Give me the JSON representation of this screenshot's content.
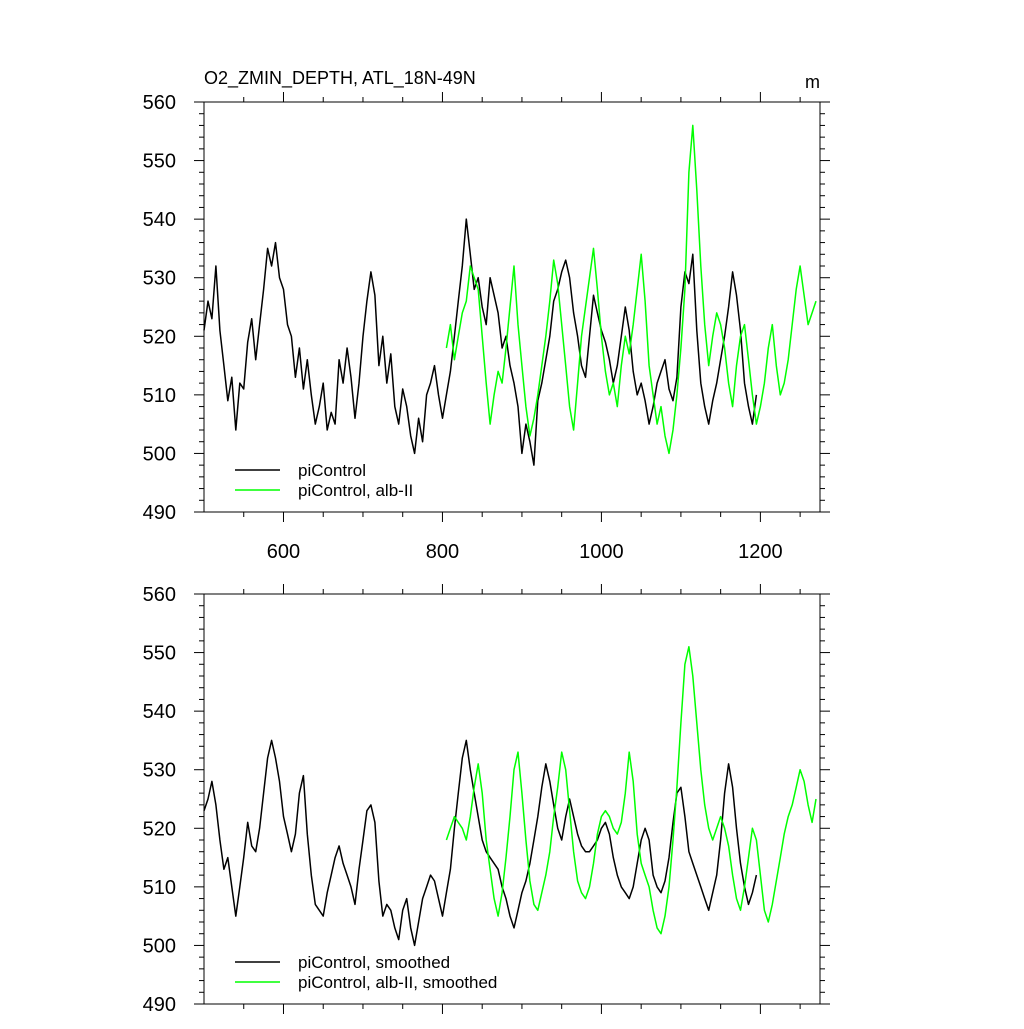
{
  "chart_data": [
    {
      "type": "line",
      "title": "O2_ZMIN_DEPTH, ATL_18N-49N",
      "units": "m",
      "xlabel": "",
      "ylabel": "",
      "xlim": [
        500,
        1275
      ],
      "ylim": [
        490,
        560
      ],
      "x_ticks": [
        600,
        800,
        1000,
        1200
      ],
      "x_tick_labels": [
        "600",
        "800",
        "1000",
        "1200"
      ],
      "y_ticks": [
        490,
        500,
        510,
        520,
        530,
        540,
        550,
        560
      ],
      "y_tick_labels": [
        "490",
        "500",
        "510",
        "520",
        "530",
        "540",
        "550",
        "560"
      ],
      "legend_position": "bottom-left",
      "series": [
        {
          "name": "piControl",
          "color": "#000000",
          "x": [
            500,
            505,
            510,
            515,
            520,
            525,
            530,
            535,
            540,
            545,
            550,
            555,
            560,
            565,
            570,
            575,
            580,
            585,
            590,
            595,
            600,
            605,
            610,
            615,
            620,
            625,
            630,
            635,
            640,
            645,
            650,
            655,
            660,
            665,
            670,
            675,
            680,
            685,
            690,
            695,
            700,
            705,
            710,
            715,
            720,
            725,
            730,
            735,
            740,
            745,
            750,
            755,
            760,
            765,
            770,
            775,
            780,
            785,
            790,
            795,
            800,
            805,
            810,
            815,
            820,
            825,
            830,
            835,
            840,
            845,
            850,
            855,
            860,
            865,
            870,
            875,
            880,
            885,
            890,
            895,
            900,
            905,
            910,
            915,
            920,
            925,
            930,
            935,
            940,
            945,
            950,
            955,
            960,
            965,
            970,
            975,
            980,
            985,
            990,
            995,
            1000,
            1005,
            1010,
            1015,
            1020,
            1025,
            1030,
            1035,
            1040,
            1045,
            1050,
            1055,
            1060,
            1065,
            1070,
            1075,
            1080,
            1085,
            1090,
            1095,
            1100,
            1105,
            1110,
            1115,
            1120,
            1125,
            1130,
            1135,
            1140,
            1145,
            1150,
            1155,
            1160,
            1165,
            1170,
            1175,
            1180,
            1185,
            1190,
            1195
          ],
          "values": [
            521,
            526,
            523,
            532,
            521,
            515,
            509,
            513,
            504,
            512,
            511,
            519,
            523,
            516,
            522,
            528,
            535,
            532,
            536,
            530,
            528,
            522,
            520,
            513,
            518,
            511,
            516,
            510,
            505,
            508,
            512,
            504,
            507,
            505,
            516,
            512,
            518,
            513,
            506,
            512,
            520,
            526,
            531,
            527,
            515,
            520,
            512,
            517,
            508,
            505,
            511,
            508,
            503,
            500,
            506,
            502,
            510,
            512,
            515,
            510,
            506,
            510,
            514,
            520,
            526,
            532,
            540,
            534,
            528,
            530,
            525,
            522,
            530,
            527,
            524,
            518,
            520,
            515,
            512,
            508,
            500,
            505,
            502,
            498,
            509,
            512,
            516,
            520,
            526,
            528,
            531,
            533,
            530,
            524,
            520,
            515,
            513,
            520,
            527,
            524,
            521,
            519,
            516,
            512,
            515,
            520,
            525,
            521,
            514,
            510,
            512,
            509,
            505,
            508,
            512,
            514,
            516,
            511,
            509,
            513,
            525,
            531,
            529,
            534,
            521,
            512,
            508,
            505,
            509,
            512,
            516,
            520,
            525,
            531,
            527,
            521,
            512,
            508,
            505,
            510
          ]
        },
        {
          "name": "piControl, alb-II",
          "color": "#00ff00",
          "x": [
            805,
            810,
            815,
            820,
            825,
            830,
            835,
            840,
            845,
            850,
            855,
            860,
            865,
            870,
            875,
            880,
            885,
            890,
            895,
            900,
            905,
            910,
            915,
            920,
            925,
            930,
            935,
            940,
            945,
            950,
            955,
            960,
            965,
            970,
            975,
            980,
            985,
            990,
            995,
            1000,
            1005,
            1010,
            1015,
            1020,
            1025,
            1030,
            1035,
            1040,
            1045,
            1050,
            1055,
            1060,
            1065,
            1070,
            1075,
            1080,
            1085,
            1090,
            1095,
            1100,
            1105,
            1110,
            1115,
            1120,
            1125,
            1130,
            1135,
            1140,
            1145,
            1150,
            1155,
            1160,
            1165,
            1170,
            1175,
            1180,
            1185,
            1190,
            1195,
            1200,
            1205,
            1210,
            1215,
            1220,
            1225,
            1230,
            1235,
            1240,
            1245,
            1250,
            1255,
            1260,
            1265,
            1270
          ],
          "values": [
            518,
            522,
            516,
            520,
            524,
            526,
            532,
            530,
            528,
            520,
            512,
            505,
            510,
            514,
            512,
            518,
            525,
            532,
            522,
            515,
            508,
            503,
            506,
            510,
            515,
            520,
            526,
            533,
            529,
            522,
            515,
            508,
            504,
            512,
            520,
            525,
            530,
            535,
            528,
            520,
            514,
            510,
            512,
            508,
            515,
            520,
            517,
            522,
            528,
            534,
            526,
            515,
            510,
            505,
            508,
            503,
            500,
            504,
            510,
            518,
            528,
            548,
            556,
            545,
            532,
            522,
            515,
            520,
            524,
            522,
            518,
            512,
            508,
            515,
            520,
            522,
            516,
            510,
            505,
            508,
            512,
            518,
            522,
            515,
            510,
            512,
            516,
            522,
            528,
            532,
            527,
            522,
            524,
            526
          ]
        }
      ]
    },
    {
      "type": "line",
      "title": "",
      "xlabel": "",
      "ylabel": "",
      "xlim": [
        500,
        1275
      ],
      "ylim": [
        490,
        560
      ],
      "x_ticks": [
        600,
        800,
        1000,
        1200
      ],
      "y_ticks": [
        490,
        500,
        510,
        520,
        530,
        540,
        550,
        560
      ],
      "y_tick_labels": [
        "490",
        "500",
        "510",
        "520",
        "530",
        "540",
        "550",
        "560"
      ],
      "legend_position": "bottom-left",
      "series": [
        {
          "name": "piControl, smoothed",
          "color": "#000000",
          "x": [
            500,
            505,
            510,
            515,
            520,
            525,
            530,
            535,
            540,
            545,
            550,
            555,
            560,
            565,
            570,
            575,
            580,
            585,
            590,
            595,
            600,
            605,
            610,
            615,
            620,
            625,
            630,
            635,
            640,
            645,
            650,
            655,
            660,
            665,
            670,
            675,
            680,
            685,
            690,
            695,
            700,
            705,
            710,
            715,
            720,
            725,
            730,
            735,
            740,
            745,
            750,
            755,
            760,
            765,
            770,
            775,
            780,
            785,
            790,
            795,
            800,
            805,
            810,
            815,
            820,
            825,
            830,
            835,
            840,
            845,
            850,
            855,
            860,
            865,
            870,
            875,
            880,
            885,
            890,
            895,
            900,
            905,
            910,
            915,
            920,
            925,
            930,
            935,
            940,
            945,
            950,
            955,
            960,
            965,
            970,
            975,
            980,
            985,
            990,
            995,
            1000,
            1005,
            1010,
            1015,
            1020,
            1025,
            1030,
            1035,
            1040,
            1045,
            1050,
            1055,
            1060,
            1065,
            1070,
            1075,
            1080,
            1085,
            1090,
            1095,
            1100,
            1105,
            1110,
            1115,
            1120,
            1125,
            1130,
            1135,
            1140,
            1145,
            1150,
            1155,
            1160,
            1165,
            1170,
            1175,
            1180,
            1185,
            1190,
            1195
          ],
          "values": [
            523,
            525,
            528,
            524,
            518,
            513,
            515,
            510,
            505,
            510,
            515,
            521,
            517,
            516,
            520,
            526,
            532,
            535,
            532,
            528,
            522,
            519,
            516,
            519,
            526,
            529,
            519,
            512,
            507,
            506,
            505,
            509,
            512,
            515,
            517,
            514,
            512,
            510,
            507,
            513,
            518,
            523,
            524,
            521,
            511,
            505,
            507,
            506,
            503,
            501,
            506,
            508,
            503,
            500,
            504,
            508,
            510,
            512,
            511,
            508,
            505,
            509,
            513,
            520,
            526,
            532,
            535,
            530,
            526,
            522,
            518,
            516,
            515,
            514,
            513,
            510,
            508,
            505,
            503,
            506,
            509,
            511,
            514,
            518,
            522,
            527,
            531,
            528,
            524,
            520,
            518,
            522,
            525,
            522,
            519,
            517,
            516,
            516,
            517,
            518,
            520,
            521,
            519,
            515,
            512,
            510,
            509,
            508,
            510,
            514,
            518,
            520,
            518,
            512,
            510,
            509,
            511,
            515,
            521,
            526,
            527,
            522,
            516,
            514,
            512,
            510,
            508,
            506,
            509,
            512,
            518,
            526,
            531,
            527,
            520,
            514,
            510,
            507,
            509,
            512
          ]
        },
        {
          "name": "piControl, alb-II, smoothed",
          "color": "#00ff00",
          "x": [
            805,
            810,
            815,
            820,
            825,
            830,
            835,
            840,
            845,
            850,
            855,
            860,
            865,
            870,
            875,
            880,
            885,
            890,
            895,
            900,
            905,
            910,
            915,
            920,
            925,
            930,
            935,
            940,
            945,
            950,
            955,
            960,
            965,
            970,
            975,
            980,
            985,
            990,
            995,
            1000,
            1005,
            1010,
            1015,
            1020,
            1025,
            1030,
            1035,
            1040,
            1045,
            1050,
            1055,
            1060,
            1065,
            1070,
            1075,
            1080,
            1085,
            1090,
            1095,
            1100,
            1105,
            1110,
            1115,
            1120,
            1125,
            1130,
            1135,
            1140,
            1145,
            1150,
            1155,
            1160,
            1165,
            1170,
            1175,
            1180,
            1185,
            1190,
            1195,
            1200,
            1205,
            1210,
            1215,
            1220,
            1225,
            1230,
            1235,
            1240,
            1245,
            1250,
            1255,
            1260,
            1265,
            1270
          ],
          "values": [
            518,
            520,
            522,
            521,
            520,
            518,
            522,
            527,
            531,
            526,
            518,
            513,
            508,
            505,
            509,
            515,
            522,
            530,
            533,
            526,
            518,
            511,
            507,
            506,
            509,
            512,
            516,
            522,
            527,
            533,
            530,
            523,
            516,
            511,
            509,
            508,
            510,
            514,
            519,
            522,
            523,
            522,
            520,
            519,
            521,
            526,
            533,
            528,
            519,
            514,
            512,
            510,
            506,
            503,
            502,
            505,
            510,
            518,
            527,
            538,
            548,
            551,
            546,
            538,
            530,
            524,
            520,
            518,
            520,
            522,
            520,
            517,
            512,
            508,
            506,
            510,
            515,
            520,
            518,
            512,
            506,
            504,
            507,
            511,
            515,
            519,
            522,
            524,
            527,
            530,
            528,
            524,
            521,
            525
          ]
        }
      ]
    }
  ]
}
